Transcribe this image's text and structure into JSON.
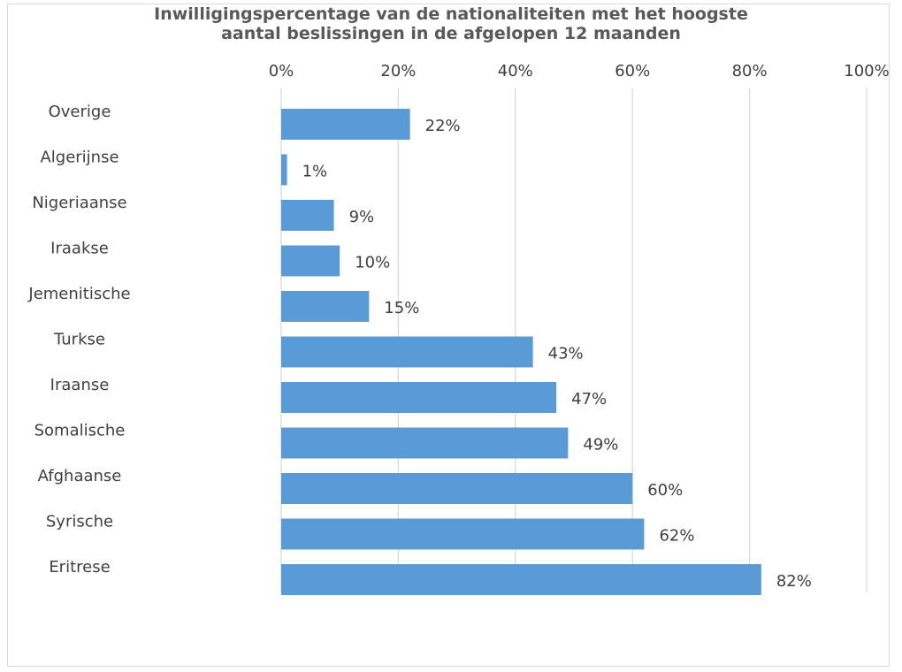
{
  "chart_data": {
    "type": "bar",
    "orientation": "horizontal",
    "title_lines": [
      "Inwilligingspercentage van de nationaliteiten met het hoogste",
      "aantal beslissingen in de afgelopen 12 maanden"
    ],
    "categories": [
      "Overige",
      "Algerijnse",
      "Nigeriaanse",
      "Iraakse",
      "Jemenitische",
      "Turkse",
      "Iraanse",
      "Somalische",
      "Afghaanse",
      "Syrische",
      "Eritrese"
    ],
    "values": [
      22,
      1,
      9,
      10,
      15,
      43,
      47,
      49,
      60,
      62,
      82
    ],
    "value_labels": [
      "22%",
      "1%",
      "9%",
      "10%",
      "15%",
      "43%",
      "47%",
      "49%",
      "60%",
      "62%",
      "82%"
    ],
    "x_ticks": [
      0,
      20,
      40,
      60,
      80,
      100
    ],
    "x_tick_labels": [
      "0%",
      "20%",
      "40%",
      "60%",
      "80%",
      "100%"
    ],
    "xlim": [
      0,
      100
    ],
    "x_axis_position": "top",
    "grid": true,
    "bar_color": "#5b9bd5"
  }
}
